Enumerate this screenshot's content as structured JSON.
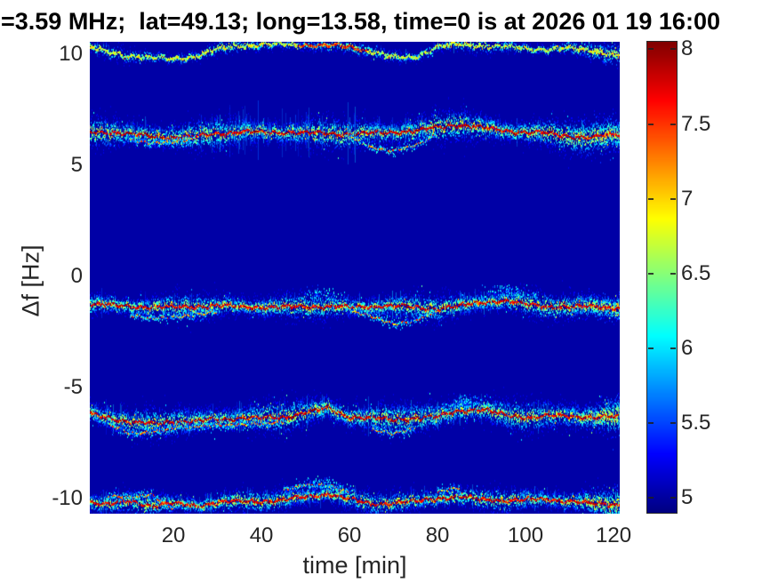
{
  "title": "=3.59 MHz;  lat=49.13; long=13.58, time=0 is at 2026 01 19 16:00",
  "colors": {
    "axis_text": "#262626",
    "title_text": "#000000",
    "figure_background": "#ffffff",
    "plot_background_jet_min": "#0000a0"
  },
  "chart_data": {
    "type": "heatmap",
    "subtype": "doppler-spectrogram",
    "title": "=3.59 MHz;  lat=49.13; long=13.58, time=0 is at 2026 01 19 16:00",
    "xlabel": "time [min]",
    "ylabel": "Δf [Hz]",
    "xlim": [
      1,
      121.4
    ],
    "ylim": [
      -10.7,
      10.58
    ],
    "xticks": [
      20,
      40,
      60,
      80,
      100,
      120
    ],
    "yticks": [
      10,
      5,
      0,
      -5,
      -10
    ],
    "grid": false,
    "colormap": "jet",
    "colorbar": {
      "min": 4.9,
      "max": 8.05,
      "ticks": [
        8,
        7.5,
        7,
        6.5,
        6,
        5.5,
        5
      ],
      "position": "right"
    },
    "background_value": 5.02,
    "time_samples": [
      0,
      5,
      10,
      15,
      20,
      25,
      30,
      35,
      40,
      45,
      50,
      55,
      60,
      65,
      70,
      75,
      80,
      85,
      90,
      95,
      100,
      105,
      110,
      115,
      120
    ],
    "traces": [
      {
        "name": "upper-edge-band-near-+10.3Hz",
        "centers": [
          10.45,
          10.15,
          10.0,
          9.9,
          9.85,
          9.95,
          10.3,
          10.45,
          10.5,
          10.5,
          10.48,
          10.45,
          10.4,
          10.2,
          9.9,
          9.95,
          10.4,
          10.5,
          10.45,
          10.4,
          10.3,
          10.28,
          10.33,
          10.25,
          10.05
        ],
        "branch": null,
        "sigma": 0.09,
        "density": 3,
        "core": [
          6.3,
          7.1
        ],
        "streaks": {
          "density": 0.06,
          "ext": 0.3
        },
        "streak_zones": [],
        "hot_zones": [
          {
            "t0": 48,
            "t1": 64,
            "core": [
              7.2,
              7.9
            ]
          }
        ],
        "clouds": [],
        "end_thicken": true
      },
      {
        "name": "band-near-+6.5Hz",
        "centers": [
          6.6,
          6.55,
          6.45,
          6.4,
          6.3,
          6.35,
          6.5,
          6.55,
          6.55,
          6.55,
          6.5,
          6.5,
          6.45,
          6.5,
          6.55,
          6.6,
          6.75,
          6.9,
          6.75,
          6.6,
          6.55,
          6.5,
          6.35,
          6.3,
          6.45
        ],
        "branch": [
          null,
          null,
          6.2,
          6.05,
          6.1,
          6.25,
          null,
          null,
          null,
          null,
          null,
          null,
          6.35,
          5.85,
          5.7,
          5.95,
          6.45,
          null,
          null,
          null,
          null,
          null,
          null,
          null,
          null
        ],
        "sigma": 0.2,
        "density": 8,
        "core": [
          7.55,
          8.05
        ],
        "streaks": {
          "density": 0.38,
          "ext": 0.55
        },
        "streak_zones": [
          {
            "t0": 26,
            "t1": 62,
            "density": 0.55,
            "ext": 1.25
          }
        ],
        "hot_zones": [],
        "clouds": [],
        "end_thicken": true
      },
      {
        "name": "band-near--1.3Hz",
        "centers": [
          -1.2,
          -1.25,
          -1.3,
          -1.35,
          -1.35,
          -1.3,
          -1.3,
          -1.3,
          -1.35,
          -1.35,
          -1.3,
          -1.32,
          -1.35,
          -1.3,
          -1.3,
          -1.35,
          -1.4,
          -1.3,
          -1.12,
          -1.05,
          -1.2,
          -1.3,
          -1.35,
          -1.3,
          -1.35
        ],
        "branch": [
          null,
          null,
          -1.7,
          -1.85,
          -1.8,
          -1.7,
          -1.55,
          null,
          null,
          null,
          null,
          null,
          -1.5,
          -1.75,
          -2.1,
          -1.95,
          -1.5,
          null,
          null,
          null,
          null,
          null,
          null,
          null,
          null
        ],
        "sigma": 0.17,
        "density": 7,
        "core": [
          7.5,
          8.0
        ],
        "streaks": {
          "density": 0.3,
          "ext": 0.5
        },
        "streak_zones": [],
        "hot_zones": [],
        "clouds": [
          {
            "t": 54,
            "dt": 5,
            "dy": 0.6,
            "n": 90
          },
          {
            "t": 96,
            "dt": 7,
            "dy": 0.55,
            "n": 150
          }
        ],
        "end_thicken": true
      },
      {
        "name": "band-near--6.3Hz",
        "centers": [
          -6.1,
          -6.3,
          -6.55,
          -6.6,
          -6.5,
          -6.5,
          -6.4,
          -6.35,
          -6.35,
          -6.3,
          -6.1,
          -5.9,
          -6.3,
          -6.35,
          -6.4,
          -6.35,
          -6.3,
          -6.0,
          -5.95,
          -6.2,
          -6.3,
          -6.25,
          -6.25,
          -6.3,
          -6.3
        ],
        "branch": [
          null,
          -6.6,
          -7.05,
          -7.0,
          -6.8,
          -6.72,
          -6.7,
          -6.65,
          -6.6,
          -6.55,
          null,
          null,
          null,
          -6.85,
          -7.05,
          -6.8,
          null,
          null,
          null,
          null,
          null,
          null,
          null,
          null,
          null
        ],
        "sigma": 0.2,
        "density": 8,
        "core": [
          7.55,
          8.05
        ],
        "streaks": {
          "density": 0.38,
          "ext": 0.6
        },
        "streak_zones": [
          {
            "t0": 63,
            "t1": 75,
            "density": 0.5,
            "ext": 0.95
          }
        ],
        "hot_zones": [],
        "clouds": [
          {
            "t": 86,
            "dt": 6,
            "dy": 0.5,
            "n": 110
          }
        ],
        "end_thicken": true
      },
      {
        "name": "band-near--10.1Hz",
        "centers": [
          -10.1,
          -10.25,
          -10.1,
          -10.3,
          -10.2,
          -10.3,
          -10.15,
          -10.1,
          -10.1,
          -10.05,
          -9.9,
          -9.75,
          -10.0,
          -10.2,
          -10.2,
          -10.1,
          -9.95,
          -9.9,
          -10.0,
          -10.05,
          -10.05,
          -10.0,
          -10.1,
          -10.2,
          -10.25
        ],
        "branch": [
          null,
          -9.85,
          -9.95,
          -9.8,
          -10.45,
          null,
          null,
          null,
          null,
          -9.6,
          -9.35,
          -9.4,
          -9.7,
          null,
          null,
          null,
          -9.65,
          -9.5,
          null,
          null,
          null,
          null,
          null,
          null,
          null
        ],
        "sigma": 0.15,
        "density": 6,
        "core": [
          7.5,
          8.0
        ],
        "streaks": {
          "density": 0.28,
          "ext": 0.45
        },
        "streak_zones": [],
        "hot_zones": [],
        "clouds": [
          {
            "t": 55,
            "dt": 6,
            "dy": 0.55,
            "n": 110
          }
        ],
        "end_thicken": true
      }
    ]
  }
}
